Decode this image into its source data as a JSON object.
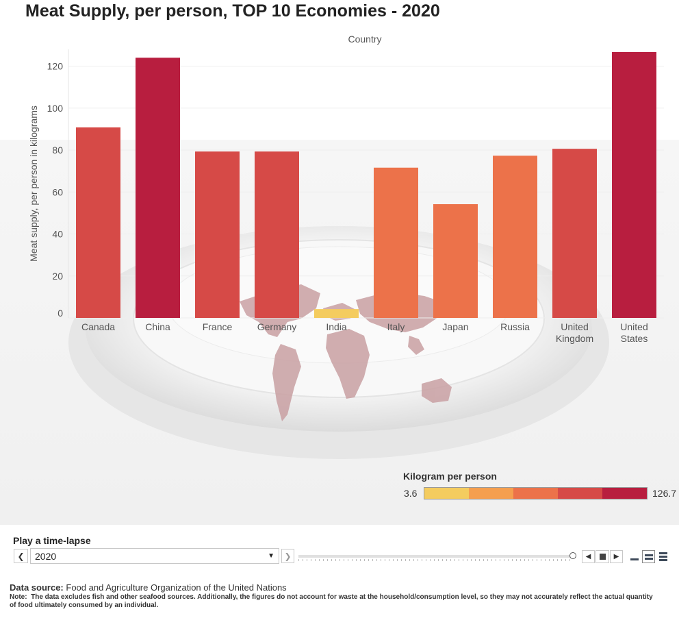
{
  "title": "Meat Supply, per person, TOP 10 Economies - 2020",
  "colors": {
    "bar_low": "#f4cc5f",
    "bar_mid_low": "#f59f4f",
    "bar_mid": "#ec724a",
    "bar_mid_high": "#d64a47",
    "bar_high": "#b81e3f",
    "grid": "#eeeeee"
  },
  "chart_data": {
    "type": "bar",
    "title": "Meat Supply, per person, TOP 10 Economies - 2020",
    "xlabel": "Country",
    "ylabel": "Meat supply, per person in kilograms",
    "categories": [
      "Canada",
      "China",
      "France",
      "Germany",
      "India",
      "Italy",
      "Japan",
      "Russia",
      "United Kingdom",
      "United States"
    ],
    "category_lines": [
      [
        "Canada"
      ],
      [
        "China"
      ],
      [
        "France"
      ],
      [
        "Germany"
      ],
      [
        "India"
      ],
      [
        "Italy"
      ],
      [
        "Japan"
      ],
      [
        "Russia"
      ],
      [
        "United",
        "Kingdom"
      ],
      [
        "United",
        "States"
      ]
    ],
    "values": [
      90.8,
      124.0,
      79.3,
      79.3,
      4.2,
      71.6,
      54.2,
      77.3,
      80.6,
      126.7
    ],
    "ylim": [
      0,
      128
    ],
    "yticks": [
      0,
      20,
      40,
      60,
      80,
      100,
      120
    ],
    "grid": true,
    "x_axis_position": "top",
    "background_image": "white plate with world map"
  },
  "legend": {
    "title": "Kilogram per person",
    "min_label": "3.6",
    "max_label": "126.7",
    "swatches": [
      "#f4cc5f",
      "#f59f4f",
      "#ec724a",
      "#d64a47",
      "#b81e3f"
    ]
  },
  "timelapse": {
    "label": "Play a time-lapse",
    "selected_year": "2020"
  },
  "footer": {
    "source_label": "Data source:",
    "source_text": "Food and Agriculture Organization of the United Nations",
    "note_label": "Note:",
    "note_text": "The data excludes fish and other seafood sources. Additionally, the figures do not account for waste at the household/consumption level, so they may not accurately reflect the actual quantity of food ultimately consumed by an individual."
  }
}
